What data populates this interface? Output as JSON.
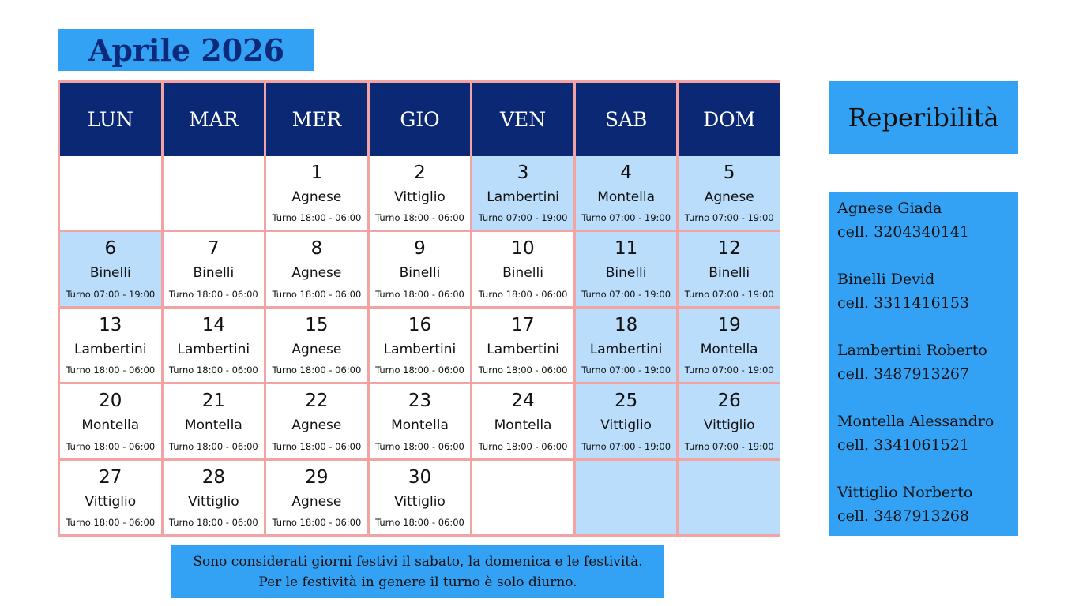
{
  "header": {
    "title": "Aprile 2026"
  },
  "calendar": {
    "weekdays": [
      "LUN",
      "MAR",
      "MER",
      "GIO",
      "VEN",
      "SAB",
      "DOM"
    ],
    "weeks": [
      [
        null,
        null,
        {
          "day": "1",
          "name": "Agnese",
          "shift": "Turno 18:00 - 06:00"
        },
        {
          "day": "2",
          "name": "Vittiglio",
          "shift": "Turno 18:00 - 06:00"
        },
        {
          "day": "3",
          "name": "Lambertini",
          "shift": "Turno 07:00 - 19:00",
          "color": "#b9ddfb"
        },
        {
          "day": "4",
          "name": "Montella",
          "shift": "Turno 07:00 - 19:00",
          "color": "#b9ddfb"
        },
        {
          "day": "5",
          "name": "Agnese",
          "shift": "Turno 07:00 - 19:00",
          "color": "#b9ddfb"
        }
      ],
      [
        {
          "day": "6",
          "name": "Binelli",
          "shift": "Turno 07:00 - 19:00",
          "color": "#b9ddfb"
        },
        {
          "day": "7",
          "name": "Binelli",
          "shift": "Turno 18:00 - 06:00"
        },
        {
          "day": "8",
          "name": "Agnese",
          "shift": "Turno 18:00 - 06:00"
        },
        {
          "day": "9",
          "name": "Binelli",
          "shift": "Turno 18:00 - 06:00"
        },
        {
          "day": "10",
          "name": "Binelli",
          "shift": "Turno 18:00 - 06:00"
        },
        {
          "day": "11",
          "name": "Binelli",
          "shift": "Turno 07:00 - 19:00",
          "color": "#b9ddfb"
        },
        {
          "day": "12",
          "name": "Binelli",
          "shift": "Turno 07:00 - 19:00",
          "color": "#b9ddfb"
        }
      ],
      [
        {
          "day": "13",
          "name": "Lambertini",
          "shift": "Turno 18:00 - 06:00"
        },
        {
          "day": "14",
          "name": "Lambertini",
          "shift": "Turno 18:00 - 06:00"
        },
        {
          "day": "15",
          "name": "Agnese",
          "shift": "Turno 18:00 - 06:00"
        },
        {
          "day": "16",
          "name": "Lambertini",
          "shift": "Turno 18:00 - 06:00"
        },
        {
          "day": "17",
          "name": "Lambertini",
          "shift": "Turno 18:00 - 06:00"
        },
        {
          "day": "18",
          "name": "Lambertini",
          "shift": "Turno 07:00 - 19:00",
          "color": "#b9ddfb"
        },
        {
          "day": "19",
          "name": "Montella",
          "shift": "Turno 07:00 - 19:00",
          "color": "#b9ddfb"
        }
      ],
      [
        {
          "day": "20",
          "name": "Montella",
          "shift": "Turno 18:00 - 06:00"
        },
        {
          "day": "21",
          "name": "Montella",
          "shift": "Turno 18:00 - 06:00"
        },
        {
          "day": "22",
          "name": "Agnese",
          "shift": "Turno 18:00 - 06:00"
        },
        {
          "day": "23",
          "name": "Montella",
          "shift": "Turno 18:00 - 06:00"
        },
        {
          "day": "24",
          "name": "Montella",
          "shift": "Turno 18:00 - 06:00"
        },
        {
          "day": "25",
          "name": "Vittiglio",
          "shift": "Turno 07:00 - 19:00",
          "color": "#b9ddfb"
        },
        {
          "day": "26",
          "name": "Vittiglio",
          "shift": "Turno 07:00 - 19:00",
          "color": "#b9ddfb"
        }
      ],
      [
        {
          "day": "27",
          "name": "Vittiglio",
          "shift": "Turno 18:00 - 06:00"
        },
        {
          "day": "28",
          "name": "Vittiglio",
          "shift": "Turno 18:00 - 06:00"
        },
        {
          "day": "29",
          "name": "Agnese",
          "shift": "Turno 18:00 - 06:00"
        },
        {
          "day": "30",
          "name": "Vittiglio",
          "shift": "Turno 18:00 - 06:00"
        },
        null,
        {
          "color": "#b9ddfb"
        },
        {
          "color": "#b9ddfb"
        }
      ]
    ]
  },
  "note": {
    "lines": [
      "Sono considerati giorni festivi il sabato, la domenica e le festività.",
      "Per le festività in genere il turno è solo diurno."
    ]
  },
  "sidebar": {
    "title": "Reperibilità",
    "contacts": [
      {
        "name": "Agnese Giada",
        "phone": "cell. 3204340141"
      },
      {
        "name": "Binelli Devid",
        "phone": "cell. 3311416153"
      },
      {
        "name": "Lambertini Roberto",
        "phone": "cell. 3487913267"
      },
      {
        "name": "Montella Alessandro",
        "phone": "cell. 3341061521"
      },
      {
        "name": "Vittiglio Norberto",
        "phone": "cell. 3487913268"
      }
    ]
  }
}
